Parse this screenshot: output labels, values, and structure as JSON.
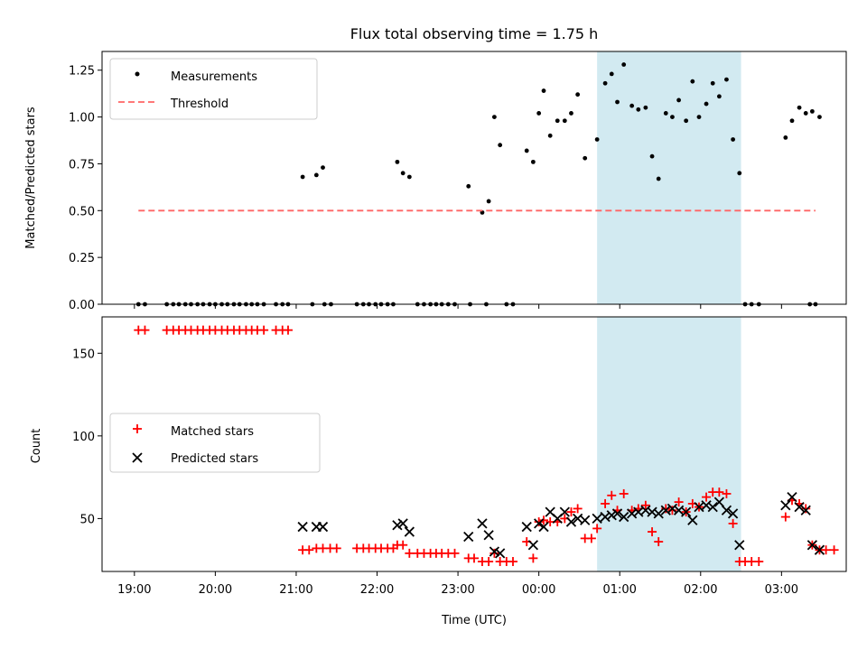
{
  "chart_data": [
    {
      "type": "scatter",
      "title": "Flux total observing time = 1.75 h",
      "xlabel": "",
      "ylabel": "Matched/Predicted stars",
      "xlim": [
        -0.4,
        8.8
      ],
      "ylim": [
        0,
        1.35
      ],
      "yticks": [
        0,
        0.25,
        0.5,
        0.75,
        1.0,
        1.25
      ],
      "ytick_labels": [
        "0.00",
        "0.25",
        "0.50",
        "0.75",
        "1.00",
        "1.25"
      ],
      "shaded_region": {
        "x_start": 5.72,
        "x_end": 7.5,
        "color": "#add8e6"
      },
      "legend_position": "upper-left",
      "series": [
        {
          "name": "Measurements",
          "kind": "points",
          "color": "#000000",
          "points": [
            [
              0.05,
              0
            ],
            [
              0.13,
              0
            ],
            [
              0.4,
              0
            ],
            [
              0.48,
              0
            ],
            [
              0.55,
              0
            ],
            [
              0.63,
              0
            ],
            [
              0.7,
              0
            ],
            [
              0.78,
              0
            ],
            [
              0.85,
              0
            ],
            [
              0.93,
              0
            ],
            [
              1.0,
              0
            ],
            [
              1.08,
              0
            ],
            [
              1.15,
              0
            ],
            [
              1.23,
              0
            ],
            [
              1.3,
              0
            ],
            [
              1.38,
              0
            ],
            [
              1.45,
              0
            ],
            [
              1.52,
              0
            ],
            [
              1.6,
              0
            ],
            [
              1.75,
              0
            ],
            [
              1.83,
              0
            ],
            [
              1.9,
              0
            ],
            [
              2.2,
              0
            ],
            [
              2.35,
              0
            ],
            [
              2.43,
              0
            ],
            [
              2.75,
              0
            ],
            [
              2.83,
              0
            ],
            [
              2.9,
              0
            ],
            [
              2.98,
              0
            ],
            [
              3.05,
              0
            ],
            [
              3.13,
              0
            ],
            [
              3.2,
              0
            ],
            [
              3.5,
              0
            ],
            [
              3.58,
              0
            ],
            [
              3.66,
              0
            ],
            [
              3.73,
              0
            ],
            [
              3.8,
              0
            ],
            [
              3.88,
              0
            ],
            [
              3.96,
              0
            ],
            [
              4.15,
              0
            ],
            [
              4.35,
              0
            ],
            [
              4.6,
              0
            ],
            [
              4.68,
              0
            ],
            [
              7.55,
              0
            ],
            [
              7.63,
              0
            ],
            [
              7.72,
              0
            ],
            [
              8.35,
              0
            ],
            [
              8.42,
              0
            ],
            [
              2.08,
              0.68
            ],
            [
              2.25,
              0.69
            ],
            [
              2.33,
              0.73
            ],
            [
              3.25,
              0.76
            ],
            [
              3.32,
              0.7
            ],
            [
              3.4,
              0.68
            ],
            [
              4.13,
              0.63
            ],
            [
              4.3,
              0.49
            ],
            [
              4.38,
              0.55
            ],
            [
              4.45,
              1.0
            ],
            [
              4.52,
              0.85
            ],
            [
              4.85,
              0.82
            ],
            [
              4.93,
              0.76
            ],
            [
              5.0,
              1.02
            ],
            [
              5.06,
              1.14
            ],
            [
              5.14,
              0.9
            ],
            [
              5.23,
              0.98
            ],
            [
              5.32,
              0.98
            ],
            [
              5.4,
              1.02
            ],
            [
              5.48,
              1.12
            ],
            [
              5.57,
              0.78
            ],
            [
              5.72,
              0.88
            ],
            [
              5.82,
              1.18
            ],
            [
              5.9,
              1.23
            ],
            [
              5.97,
              1.08
            ],
            [
              6.05,
              1.28
            ],
            [
              6.15,
              1.06
            ],
            [
              6.23,
              1.04
            ],
            [
              6.32,
              1.05
            ],
            [
              6.4,
              0.79
            ],
            [
              6.48,
              0.67
            ],
            [
              6.57,
              1.02
            ],
            [
              6.65,
              1.0
            ],
            [
              6.73,
              1.09
            ],
            [
              6.82,
              0.98
            ],
            [
              6.9,
              1.19
            ],
            [
              6.98,
              1.0
            ],
            [
              7.07,
              1.07
            ],
            [
              7.15,
              1.18
            ],
            [
              7.23,
              1.11
            ],
            [
              7.32,
              1.2
            ],
            [
              7.4,
              0.88
            ],
            [
              7.48,
              0.7
            ],
            [
              8.05,
              0.89
            ],
            [
              8.13,
              0.98
            ],
            [
              8.22,
              1.05
            ],
            [
              8.3,
              1.02
            ],
            [
              8.38,
              1.03
            ],
            [
              8.47,
              1.0
            ]
          ]
        },
        {
          "name": "Threshold",
          "kind": "dashed-line",
          "color": "#ff6666",
          "points": [
            [
              0.05,
              0.5
            ],
            [
              8.42,
              0.5
            ]
          ]
        }
      ]
    },
    {
      "type": "scatter",
      "title": "",
      "xlabel": "Time (UTC)",
      "ylabel": "Count",
      "xlim": [
        -0.4,
        8.8
      ],
      "ylim": [
        18,
        172
      ],
      "yticks": [
        50,
        100,
        150
      ],
      "ytick_labels": [
        "50",
        "100",
        "150"
      ],
      "xticks": [
        0,
        1,
        2,
        3,
        4,
        5,
        6,
        7,
        8
      ],
      "xtick_labels": [
        "19:00",
        "20:00",
        "21:00",
        "22:00",
        "23:00",
        "00:00",
        "01:00",
        "02:00",
        "03:00"
      ],
      "shaded_region": {
        "x_start": 5.72,
        "x_end": 7.5,
        "color": "#add8e6"
      },
      "legend_position": "center-left",
      "series": [
        {
          "name": "Matched stars",
          "kind": "plus",
          "color": "#ff0000",
          "points": [
            [
              0.05,
              164
            ],
            [
              0.13,
              164
            ],
            [
              0.4,
              164
            ],
            [
              0.48,
              164
            ],
            [
              0.55,
              164
            ],
            [
              0.63,
              164
            ],
            [
              0.7,
              164
            ],
            [
              0.78,
              164
            ],
            [
              0.85,
              164
            ],
            [
              0.93,
              164
            ],
            [
              1.0,
              164
            ],
            [
              1.08,
              164
            ],
            [
              1.15,
              164
            ],
            [
              1.23,
              164
            ],
            [
              1.3,
              164
            ],
            [
              1.38,
              164
            ],
            [
              1.45,
              164
            ],
            [
              1.52,
              164
            ],
            [
              1.6,
              164
            ],
            [
              1.75,
              164
            ],
            [
              1.83,
              164
            ],
            [
              1.9,
              164
            ],
            [
              2.08,
              31
            ],
            [
              2.16,
              31
            ],
            [
              2.25,
              32
            ],
            [
              2.33,
              32
            ],
            [
              2.42,
              32
            ],
            [
              2.5,
              32
            ],
            [
              2.75,
              32
            ],
            [
              2.83,
              32
            ],
            [
              2.9,
              32
            ],
            [
              2.98,
              32
            ],
            [
              3.05,
              32
            ],
            [
              3.13,
              32
            ],
            [
              3.2,
              32
            ],
            [
              3.25,
              34
            ],
            [
              3.32,
              34
            ],
            [
              3.4,
              29
            ],
            [
              3.5,
              29
            ],
            [
              3.58,
              29
            ],
            [
              3.66,
              29
            ],
            [
              3.73,
              29
            ],
            [
              3.8,
              29
            ],
            [
              3.88,
              29
            ],
            [
              3.96,
              29
            ],
            [
              4.13,
              26
            ],
            [
              4.2,
              26
            ],
            [
              4.3,
              24
            ],
            [
              4.38,
              24
            ],
            [
              4.45,
              29
            ],
            [
              4.52,
              24
            ],
            [
              4.6,
              24
            ],
            [
              4.68,
              24
            ],
            [
              4.85,
              36
            ],
            [
              4.93,
              26
            ],
            [
              5.0,
              48
            ],
            [
              5.06,
              49
            ],
            [
              5.14,
              48
            ],
            [
              5.23,
              48
            ],
            [
              5.32,
              50
            ],
            [
              5.4,
              54
            ],
            [
              5.48,
              56
            ],
            [
              5.57,
              38
            ],
            [
              5.65,
              38
            ],
            [
              5.72,
              44
            ],
            [
              5.82,
              59
            ],
            [
              5.9,
              64
            ],
            [
              5.97,
              55
            ],
            [
              6.05,
              65
            ],
            [
              6.15,
              55
            ],
            [
              6.23,
              56
            ],
            [
              6.32,
              58
            ],
            [
              6.4,
              42
            ],
            [
              6.48,
              36
            ],
            [
              6.57,
              56
            ],
            [
              6.65,
              55
            ],
            [
              6.73,
              60
            ],
            [
              6.82,
              54
            ],
            [
              6.9,
              59
            ],
            [
              6.98,
              57
            ],
            [
              7.07,
              63
            ],
            [
              7.15,
              66
            ],
            [
              7.23,
              66
            ],
            [
              7.32,
              65
            ],
            [
              7.4,
              47
            ],
            [
              7.48,
              24
            ],
            [
              7.55,
              24
            ],
            [
              7.63,
              24
            ],
            [
              7.72,
              24
            ],
            [
              8.05,
              51
            ],
            [
              8.13,
              61
            ],
            [
              8.22,
              59
            ],
            [
              8.3,
              56
            ],
            [
              8.38,
              34
            ],
            [
              8.47,
              31
            ],
            [
              8.55,
              31
            ],
            [
              8.65,
              31
            ]
          ]
        },
        {
          "name": "Predicted stars",
          "kind": "x",
          "color": "#000000",
          "points": [
            [
              2.08,
              45
            ],
            [
              2.25,
              45
            ],
            [
              2.33,
              45
            ],
            [
              3.25,
              46
            ],
            [
              3.32,
              47
            ],
            [
              3.4,
              42
            ],
            [
              4.13,
              39
            ],
            [
              4.3,
              47
            ],
            [
              4.38,
              40
            ],
            [
              4.45,
              30
            ],
            [
              4.52,
              29
            ],
            [
              4.85,
              45
            ],
            [
              4.93,
              34
            ],
            [
              5.0,
              47
            ],
            [
              5.06,
              45
            ],
            [
              5.14,
              54
            ],
            [
              5.23,
              50
            ],
            [
              5.32,
              54
            ],
            [
              5.4,
              48
            ],
            [
              5.48,
              50
            ],
            [
              5.57,
              49
            ],
            [
              5.72,
              50
            ],
            [
              5.82,
              51
            ],
            [
              5.9,
              52
            ],
            [
              5.97,
              53
            ],
            [
              6.05,
              51
            ],
            [
              6.15,
              53
            ],
            [
              6.23,
              54
            ],
            [
              6.32,
              55
            ],
            [
              6.4,
              54
            ],
            [
              6.48,
              53
            ],
            [
              6.57,
              55
            ],
            [
              6.65,
              56
            ],
            [
              6.73,
              55
            ],
            [
              6.82,
              54
            ],
            [
              6.9,
              49
            ],
            [
              6.98,
              57
            ],
            [
              7.07,
              58
            ],
            [
              7.15,
              57
            ],
            [
              7.23,
              60
            ],
            [
              7.32,
              55
            ],
            [
              7.4,
              53
            ],
            [
              7.48,
              34
            ],
            [
              8.05,
              58
            ],
            [
              8.13,
              63
            ],
            [
              8.22,
              57
            ],
            [
              8.3,
              55
            ],
            [
              8.38,
              34
            ],
            [
              8.47,
              31
            ]
          ]
        }
      ]
    }
  ]
}
